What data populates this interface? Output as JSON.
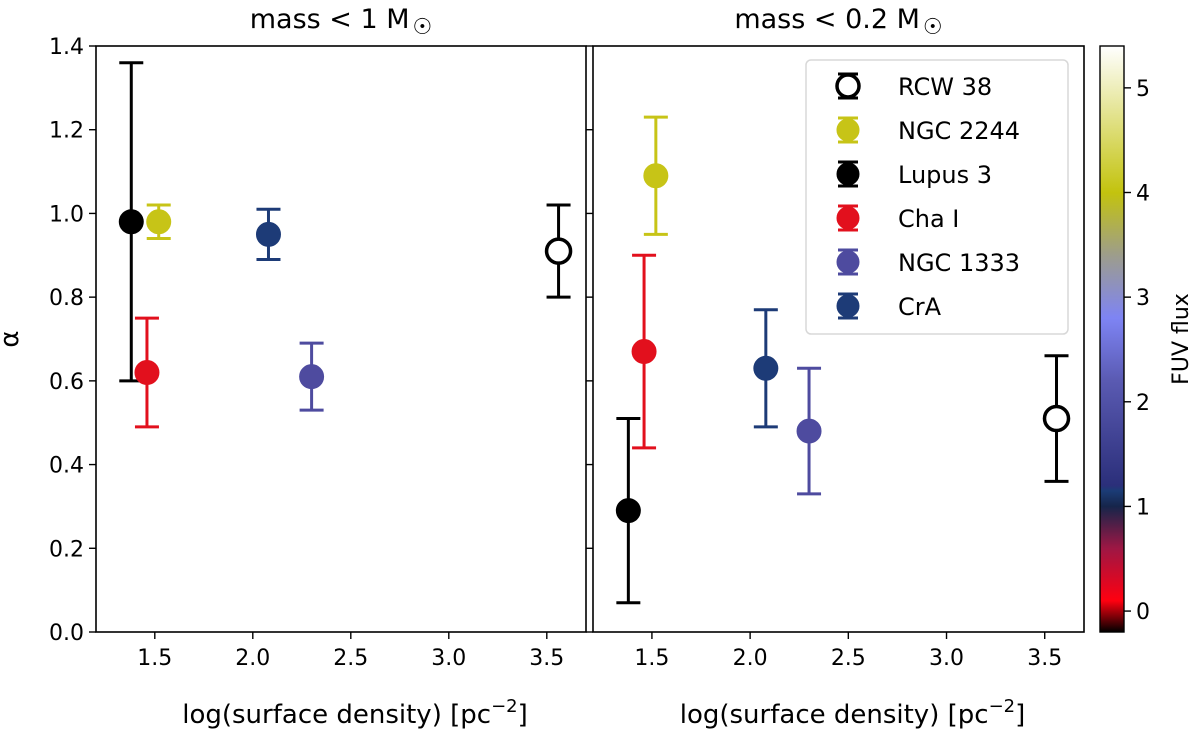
{
  "chart_data": [
    {
      "type": "scatter",
      "title": "mass < 1 M",
      "title_symbol": "☉",
      "xlabel": "log(surface density) [pc",
      "xlabel_sup": "−2",
      "xlabel_end": "]",
      "ylabel": "α",
      "xlim": [
        1.2,
        3.7
      ],
      "ylim": [
        0.0,
        1.4
      ],
      "xticks": [
        "1.5",
        "2.0",
        "2.5",
        "3.0",
        "3.5"
      ],
      "yticks": [
        "0.0",
        "0.2",
        "0.4",
        "0.6",
        "0.8",
        "1.0",
        "1.2",
        "1.4"
      ],
      "series": [
        {
          "name": "RCW 38",
          "x": 3.56,
          "y": 0.91,
          "err": 0.11,
          "color": "#ffffff",
          "edge": "#000000",
          "errcolor": "#000000"
        },
        {
          "name": "NGC 2244",
          "x": 1.52,
          "y": 0.98,
          "err": 0.04,
          "color": "#c7c417",
          "edge": "#c7c417",
          "errcolor": "#c7c417"
        },
        {
          "name": "Lupus 3",
          "x": 1.38,
          "y": 0.98,
          "err": 0.38,
          "color": "#000000",
          "edge": "#000000",
          "errcolor": "#000000"
        },
        {
          "name": "Cha I",
          "x": 1.46,
          "y": 0.62,
          "err": 0.13,
          "color": "#e2101d",
          "edge": "#e2101d",
          "errcolor": "#e2101d"
        },
        {
          "name": "NGC 1333",
          "x": 2.3,
          "y": 0.61,
          "err": 0.08,
          "color": "#4e4b9f",
          "edge": "#4e4b9f",
          "errcolor": "#4e4b9f"
        },
        {
          "name": "CrA",
          "x": 2.08,
          "y": 0.95,
          "err": 0.06,
          "color": "#1d3b77",
          "edge": "#1d3b77",
          "errcolor": "#1d3b77"
        }
      ]
    },
    {
      "type": "scatter",
      "title": "mass < 0.2 M",
      "title_symbol": "☉",
      "xlabel": "log(surface density) [pc",
      "xlabel_sup": "−2",
      "xlabel_end": "]",
      "xlim": [
        1.2,
        3.7
      ],
      "ylim": [
        0.0,
        1.4
      ],
      "xticks": [
        "1.5",
        "2.0",
        "2.5",
        "3.0",
        "3.5"
      ],
      "series": [
        {
          "name": "RCW 38",
          "x": 3.56,
          "y": 0.51,
          "err": 0.15,
          "color": "#ffffff",
          "edge": "#000000",
          "errcolor": "#000000"
        },
        {
          "name": "NGC 2244",
          "x": 1.52,
          "y": 1.09,
          "err": 0.14,
          "color": "#c7c417",
          "edge": "#c7c417",
          "errcolor": "#c7c417"
        },
        {
          "name": "Lupus 3",
          "x": 1.38,
          "y": 0.29,
          "err": 0.22,
          "color": "#000000",
          "edge": "#000000",
          "errcolor": "#000000"
        },
        {
          "name": "Cha I",
          "x": 1.46,
          "y": 0.67,
          "err": 0.23,
          "color": "#e2101d",
          "edge": "#e2101d",
          "errcolor": "#e2101d"
        },
        {
          "name": "NGC 1333",
          "x": 2.3,
          "y": 0.48,
          "err": 0.15,
          "color": "#4e4b9f",
          "edge": "#4e4b9f",
          "errcolor": "#4e4b9f"
        },
        {
          "name": "CrA",
          "x": 2.08,
          "y": 0.63,
          "err": 0.14,
          "color": "#1d3b77",
          "edge": "#1d3b77",
          "errcolor": "#1d3b77"
        }
      ],
      "legend": {
        "placement": "top-right",
        "entries": [
          "RCW 38",
          "NGC 2244",
          "Lupus 3",
          "Cha I",
          "NGC 1333",
          "CrA"
        ]
      }
    }
  ],
  "colorbar": {
    "label": "FUV flux",
    "range": [
      -0.2,
      5.4
    ],
    "ticks": [
      "0",
      "1",
      "2",
      "3",
      "4",
      "5"
    ],
    "stops": [
      {
        "v": -0.2,
        "c": "#000000"
      },
      {
        "v": 0.1,
        "c": "#ff0010"
      },
      {
        "v": 0.6,
        "c": "#9e1744"
      },
      {
        "v": 1.0,
        "c": "#16254a"
      },
      {
        "v": 1.15,
        "c": "#1b3c76"
      },
      {
        "v": 1.2,
        "c": "#2b2f7a"
      },
      {
        "v": 2.2,
        "c": "#5a5ab2"
      },
      {
        "v": 2.8,
        "c": "#7e84f4"
      },
      {
        "v": 3.4,
        "c": "#9d9d8c"
      },
      {
        "v": 4.0,
        "c": "#c3c30e"
      },
      {
        "v": 5.4,
        "c": "#ffffff"
      }
    ]
  }
}
